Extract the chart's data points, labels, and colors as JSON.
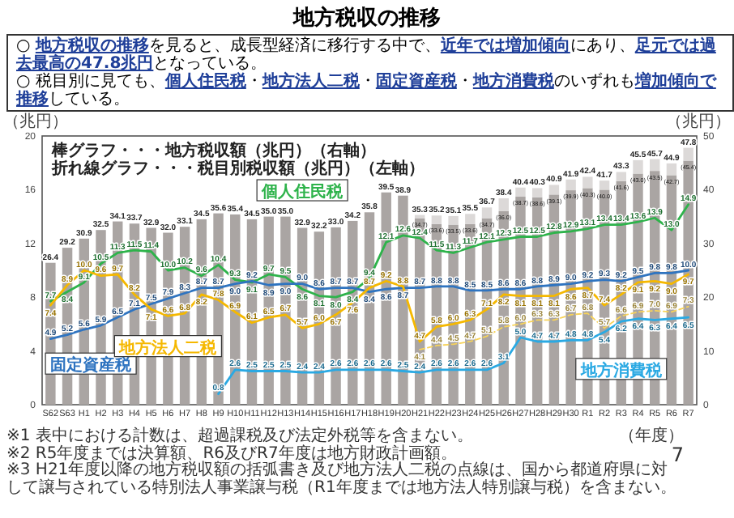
{
  "chart_data": {
    "type": "bar",
    "title": "地方税収の推移",
    "annotations": [
      "○ **地方税収の推移**を見ると、成長型経済に移行する中で、**近年では増加傾向**にあり、**足元では過去最高の47.8兆円**となっている。",
      "○ 税目別に見ても、**個人住民税**・**地方法人二税**・**固定資産税**・**地方消費税**のいずれも**増加傾向で推移**している。",
      "棒グラフ・・・地方税収額（兆円）（右軸）",
      "折れ線グラフ・・・税目別税収額（兆円）（左軸）",
      "※1 表中における計数は、超過課税及び法定外税等を含まない。",
      "※2 R5年度までは決算額、R6及びR7年度は地方財政計画額。",
      "※3 H21年度以降の地方税収額の括弧書き及び地方法人二税の点線は、国から都道府県に対して譲与されている特別法人事業譲与税（R1年度までは地方法人特別譲与税）を含まない。",
      "7"
    ],
    "categories": [
      "S62",
      "S63",
      "H1",
      "H2",
      "H3",
      "H4",
      "H5",
      "H6",
      "H7",
      "H8",
      "H9",
      "H10",
      "H11",
      "H12",
      "H13",
      "H14",
      "H15",
      "H16",
      "H17",
      "H18",
      "H19",
      "H20",
      "H21",
      "H22",
      "H23",
      "H24",
      "H25",
      "H26",
      "H27",
      "H28",
      "H29",
      "H30",
      "R1",
      "R2",
      "R3",
      "R4",
      "R5",
      "R6",
      "R7"
    ],
    "xlabel": "（年度）",
    "ylabel": "（兆円）",
    "y2label": "（兆円）",
    "ylim": [
      0,
      20
    ],
    "yticks": [
      0,
      4,
      8,
      12,
      16,
      20
    ],
    "y2lim": [
      0,
      50
    ],
    "y2ticks": [
      0,
      10,
      20,
      30,
      40,
      50
    ],
    "stacked": true,
    "data_labels": true,
    "legend": false,
    "grid": false,
    "totals": [
      "26.4",
      "29.2",
      "30.9",
      "32.5",
      "34.1",
      "33.7",
      "32.9",
      "32.0",
      "33.1",
      "34.5",
      "35.6",
      "35.4",
      "34.5",
      "35.0",
      "35.0",
      "32.9",
      "32.2",
      "33.0",
      "34.2",
      "35.8",
      "39.5",
      "38.9",
      "35.3",
      "35.2",
      "35.1",
      "35.5",
      "36.7",
      "38.4",
      "40.4",
      "40.3",
      "40.9",
      "41.9",
      "42.4",
      "41.7",
      "43.3",
      "45.5",
      "45.7",
      "44.9",
      "47.8"
    ],
    "series": [
      {
        "type": "bar",
        "axis": "y2",
        "color": "#aaa5a3",
        "values": [
          26.4,
          29.2,
          30.9,
          32.5,
          34.1,
          33.7,
          32.9,
          32.0,
          33.1,
          34.5,
          35.6,
          35.4,
          34.5,
          35.0,
          35.0,
          32.9,
          32.2,
          33.0,
          34.2,
          35.8,
          39.5,
          38.9,
          34.7,
          33.6,
          33.5,
          33.6,
          34.7,
          36.0,
          38.7,
          38.6,
          39.1,
          39.9,
          40.3,
          40.0,
          41.6,
          43.0,
          43.5,
          42.7,
          45.4
        ],
        "value_labels": [
          null,
          null,
          null,
          null,
          null,
          null,
          null,
          null,
          null,
          null,
          null,
          null,
          null,
          null,
          null,
          null,
          null,
          null,
          null,
          null,
          null,
          null,
          "(34.7)",
          "(33.6)",
          "(33.5)",
          "(33.6)",
          "(34.7)",
          "(36.0)",
          "(38.7)",
          "(38.6)",
          "(39.1)",
          "(39.9)",
          "(40.3)",
          "(40.0)",
          "(41.6)",
          "(43.0)",
          "(43.5)",
          "(42.7)",
          "(45.4)"
        ]
      },
      {
        "type": "bar",
        "axis": "y2",
        "color": "#dcd9d8",
        "values": [
          null,
          null,
          null,
          null,
          null,
          null,
          null,
          null,
          null,
          null,
          null,
          null,
          null,
          null,
          null,
          null,
          null,
          null,
          null,
          null,
          null,
          null,
          0.6,
          1.6,
          1.6,
          1.9,
          2.0,
          2.4,
          1.7,
          1.7,
          1.8,
          2.0,
          2.1,
          1.7,
          1.7,
          2.5,
          2.2,
          2.2,
          2.4
        ],
        "value_labels": [
          null,
          null,
          null,
          null,
          null,
          null,
          null,
          null,
          null,
          null,
          null,
          null,
          null,
          null,
          null,
          null,
          null,
          null,
          null,
          null,
          null,
          null,
          null,
          null,
          null,
          null,
          null,
          null,
          null,
          null,
          null,
          null,
          null,
          null,
          null,
          null,
          null,
          null,
          null
        ]
      },
      {
        "type": "line",
        "name": "個人住民税",
        "color": "#2eb34b",
        "values": [
          7.7,
          8.4,
          9.1,
          10.5,
          11.3,
          11.5,
          11.4,
          10.0,
          10.2,
          9.6,
          10.4,
          9.3,
          9.1,
          9.7,
          9.5,
          8.6,
          8.1,
          8.0,
          8.4,
          9.4,
          12.1,
          12.6,
          12.4,
          11.5,
          11.3,
          11.7,
          12.1,
          12.3,
          12.5,
          12.5,
          12.8,
          12.9,
          13.1,
          13.4,
          13.4,
          13.6,
          13.9,
          13.0,
          14.9
        ],
        "value_labels": [
          "7.7",
          "8.4",
          "9.1",
          "10.5",
          "11.3",
          "11.5",
          "11.4",
          "10.0",
          "10.2",
          "9.6",
          "10.4",
          "9.3",
          "9.1",
          "9.7",
          "9.5",
          "8.6",
          "8.1",
          "8.0",
          "8.4",
          "9.4",
          "12.1",
          "12.6",
          "12.4",
          "11.5",
          "11.3",
          "11.7",
          "12.1",
          "12.3",
          "12.5",
          "12.5",
          "12.8",
          "12.9",
          "13.1",
          "13.4",
          "13.4",
          "13.6",
          "13.9",
          "13.0",
          "14.9"
        ]
      },
      {
        "type": "line",
        "name": "固定資産税",
        "color": "#2f74c0",
        "values": [
          4.9,
          5.2,
          5.6,
          5.9,
          6.5,
          7.1,
          7.5,
          7.9,
          8.3,
          8.7,
          8.7,
          9.0,
          9.2,
          8.9,
          9.0,
          9.0,
          8.6,
          8.7,
          8.7,
          8.4,
          8.6,
          8.7,
          8.7,
          8.8,
          8.8,
          8.5,
          8.5,
          8.6,
          8.6,
          8.8,
          8.9,
          9.0,
          9.2,
          9.3,
          9.2,
          9.5,
          9.8,
          9.8,
          10.0
        ],
        "value_labels": [
          "4.9",
          "5.2",
          "5.6",
          "5.9",
          "6.5",
          "7.1",
          "7.5",
          "7.9",
          "8.3",
          "8.7",
          "8.7",
          "9.0",
          "9.2",
          "8.9",
          "9.0",
          "9.0",
          "8.6",
          "8.7",
          "8.7",
          "8.4",
          "8.6",
          "8.7",
          "8.7",
          "8.8",
          "8.8",
          "8.5",
          "8.5",
          "8.6",
          "8.6",
          "8.8",
          "8.9",
          "9.0",
          "9.2",
          "9.3",
          "9.2",
          "9.5",
          "9.8",
          "9.8",
          "10.0"
        ]
      },
      {
        "type": "line",
        "name": "地方法人二税",
        "color": "#f5b800",
        "values": [
          7.4,
          8.9,
          10.0,
          9.6,
          9.7,
          8.2,
          7.1,
          6.6,
          6.8,
          8.2,
          7.8,
          6.9,
          6.1,
          6.5,
          6.7,
          5.7,
          6.0,
          6.7,
          7.6,
          8.7,
          9.2,
          8.8,
          4.7,
          5.8,
          6.0,
          6.3,
          7.1,
          8.2,
          8.1,
          8.1,
          8.1,
          8.6,
          8.7,
          7.4,
          8.2,
          9.1,
          9.2,
          9.0,
          9.7
        ],
        "value_labels": [
          "7.4",
          "8.9",
          "10.0",
          "9.6",
          "9.7",
          "8.2",
          "7.1",
          "6.6",
          "6.8",
          "8.2",
          "7.8",
          "6.9",
          "6.1",
          "6.5",
          "6.7",
          "5.7",
          "6.0",
          "6.7",
          "7.6",
          "8.7",
          "9.2",
          "8.8",
          "4.7",
          "5.8",
          "6.0",
          "6.3",
          "7.1",
          "8.2",
          "8.1",
          "8.1",
          "8.1",
          "8.6",
          "8.7",
          "7.4",
          "8.2",
          "9.1",
          "9.2",
          "9.0",
          "9.7"
        ]
      },
      {
        "type": "line",
        "line_style": "dashed",
        "color": "#f7d35a",
        "values": [
          null,
          null,
          null,
          null,
          null,
          null,
          null,
          null,
          null,
          null,
          null,
          null,
          null,
          null,
          null,
          null,
          null,
          null,
          null,
          null,
          null,
          null,
          4.1,
          4.4,
          4.5,
          4.7,
          5.1,
          5.8,
          6.0,
          6.3,
          6.3,
          6.7,
          6.8,
          5.7,
          6.6,
          6.9,
          7.0,
          6.9,
          7.3
        ],
        "value_labels": [
          null,
          null,
          null,
          null,
          null,
          null,
          null,
          null,
          null,
          null,
          null,
          null,
          null,
          null,
          null,
          null,
          null,
          null,
          null,
          null,
          null,
          null,
          "4.1",
          "4.4",
          "4.5",
          "4.7",
          "5.1",
          "5.8",
          "6.0",
          "6.3",
          "6.3",
          "6.7",
          "6.8",
          "5.7",
          "6.6",
          "6.9",
          "7.0",
          "6.9",
          "7.3"
        ]
      },
      {
        "type": "line",
        "name": "地方消費税",
        "color": "#2aa9e3",
        "values": [
          null,
          null,
          null,
          null,
          null,
          null,
          null,
          null,
          null,
          null,
          0.8,
          2.6,
          2.5,
          2.5,
          2.5,
          2.4,
          2.4,
          2.6,
          2.6,
          2.6,
          2.6,
          2.5,
          2.4,
          2.6,
          2.6,
          2.6,
          2.6,
          3.1,
          5.0,
          4.7,
          4.7,
          4.8,
          4.8,
          5.4,
          6.2,
          6.4,
          6.3,
          6.4,
          6.5
        ],
        "value_labels": [
          null,
          null,
          null,
          null,
          null,
          null,
          null,
          null,
          null,
          null,
          "0.8",
          "2.6",
          "2.5",
          "2.5",
          "2.5",
          "2.4",
          "2.4",
          "2.6",
          "2.6",
          "2.6",
          "2.6",
          "2.5",
          "2.4",
          "2.6",
          "2.6",
          "2.6",
          "2.6",
          "3.1",
          "5.0",
          "4.7",
          "4.7",
          "4.8",
          "4.8",
          "5.4",
          "6.2",
          "6.4",
          "6.3",
          "6.4",
          "6.5"
        ]
      }
    ]
  }
}
